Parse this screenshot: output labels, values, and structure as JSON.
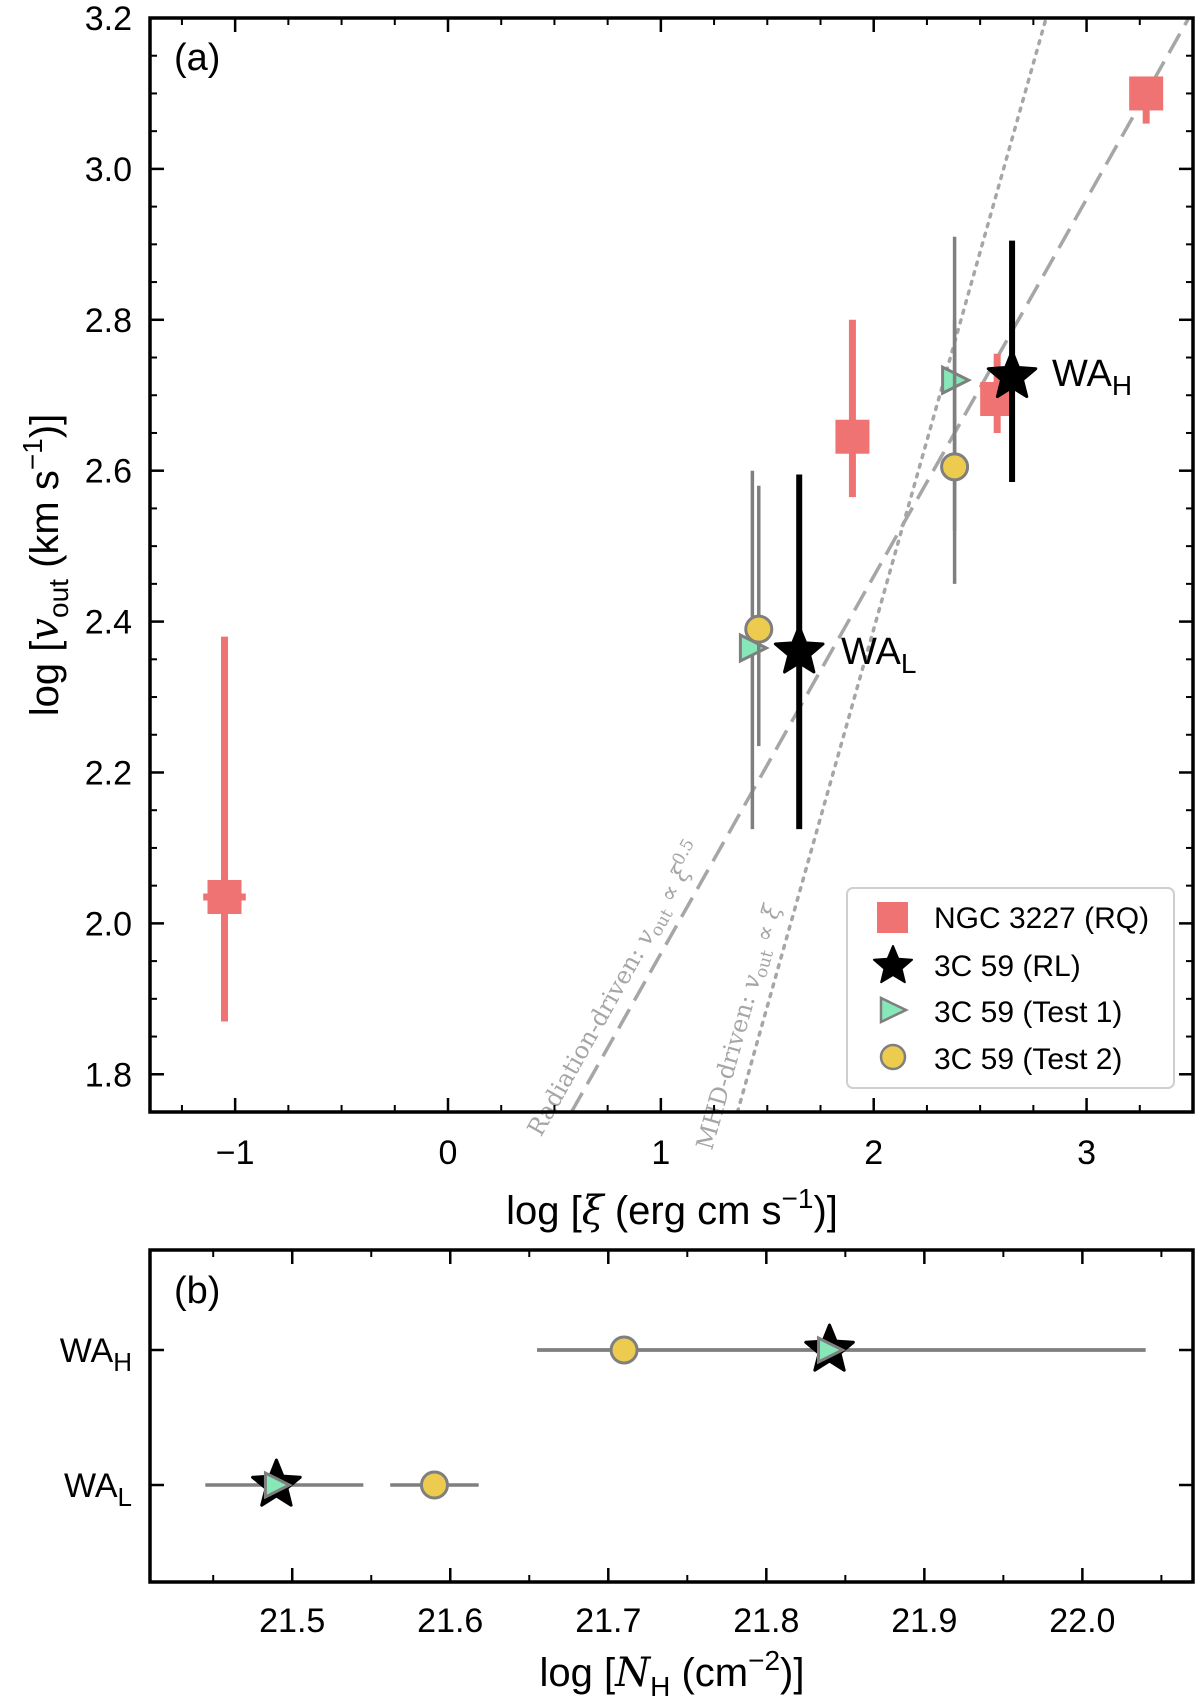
{
  "chart_data": [
    {
      "panel": "a",
      "type": "scatter",
      "panel_label": "(a)",
      "xlabel": {
        "pre": "log [",
        "sym": "ξ",
        "mid": " (erg cm s",
        "sup": "−1",
        "post": ")]"
      },
      "ylabel": {
        "pre": "log [",
        "sym": "v",
        "sub": "out",
        "mid": " (km s",
        "sup": "−1",
        "post": ")]"
      },
      "xlim": [
        -1.4,
        3.5
      ],
      "ylim": [
        1.75,
        3.2
      ],
      "xticks": [
        -1,
        0,
        1,
        2,
        3
      ],
      "xtick_labels": [
        "−1",
        "0",
        "1",
        "2",
        "3"
      ],
      "yticks": [
        1.8,
        2.0,
        2.2,
        2.4,
        2.6,
        2.8,
        3.0,
        3.2
      ],
      "ytick_labels": [
        "1.8",
        "2.0",
        "2.2",
        "2.4",
        "2.6",
        "2.8",
        "3.0",
        "3.2"
      ],
      "series": [
        {
          "name": "NGC 3227 (RQ)",
          "marker": "square",
          "color": "#f07373",
          "points": [
            {
              "x": -1.05,
              "y": 2.035,
              "y_lo": 1.87,
              "y_hi": 2.38,
              "x_lo": -1.15,
              "x_hi": -0.95
            },
            {
              "x": 1.9,
              "y": 2.645,
              "y_lo": 2.565,
              "y_hi": 2.8
            },
            {
              "x": 2.58,
              "y": 2.695,
              "y_lo": 2.65,
              "y_hi": 2.755
            },
            {
              "x": 3.28,
              "y": 3.1,
              "y_lo": 3.06,
              "y_hi": 3.1
            }
          ]
        },
        {
          "name": "3C 59 (RL)",
          "marker": "star",
          "color": "#000000",
          "points": [
            {
              "x": 1.65,
              "y": 2.36,
              "y_lo": 2.125,
              "y_hi": 2.595
            },
            {
              "x": 2.65,
              "y": 2.725,
              "y_lo": 2.585,
              "y_hi": 2.905
            }
          ]
        },
        {
          "name": "3C 59 (Test 1)",
          "marker": "triangle-right",
          "color": "#86e8b8",
          "points": [
            {
              "x": 1.43,
              "y": 2.365,
              "y_lo": 2.125,
              "y_hi": 2.6
            },
            {
              "x": 2.38,
              "y": 2.72,
              "y_lo": 2.52,
              "y_hi": 2.91
            }
          ]
        },
        {
          "name": "3C 59 (Test 2)",
          "marker": "circle",
          "color": "#eccb4f",
          "points": [
            {
              "x": 1.46,
              "y": 2.39,
              "y_lo": 2.235,
              "y_hi": 2.58
            },
            {
              "x": 2.38,
              "y": 2.605,
              "y_lo": 2.45,
              "y_hi": 2.8
            }
          ]
        }
      ],
      "point_labels": [
        {
          "text": "WA",
          "sub": "L",
          "x": 1.85,
          "y": 2.35
        },
        {
          "text": "WA",
          "sub": "H",
          "x": 2.85,
          "y": 2.72
        }
      ],
      "relations": [
        {
          "name": "radiation-driven",
          "style": "dashed",
          "slope": 0.5,
          "points": [
            [
              0.58,
              1.75
            ],
            [
              3.5,
              3.21
            ]
          ],
          "label_pre": "Radiation-driven: ",
          "label_sym": "v",
          "label_sub": "out",
          "label_rel": " ∝ ",
          "label_xi": "ξ",
          "label_exp": "0.5"
        },
        {
          "name": "mhd-driven",
          "style": "dotted",
          "slope": 1.0,
          "points": [
            [
              1.36,
              1.75
            ],
            [
              2.81,
              3.2
            ]
          ],
          "label_pre": "MHD-driven: ",
          "label_sym": "v",
          "label_sub": "out",
          "label_rel": " ∝ ",
          "label_xi": "ξ"
        }
      ],
      "legend": {
        "placement": "bottom-right",
        "entries": [
          "NGC 3227 (RQ)",
          "3C 59 (RL)",
          "3C 59 (Test 1)",
          "3C 59 (Test 2)"
        ]
      }
    },
    {
      "panel": "b",
      "type": "scatter",
      "panel_label": "(b)",
      "xlabel": {
        "pre": "log [",
        "sym": "N",
        "sub": "H",
        "mid": " (cm",
        "sup": "−2",
        "post": ")]"
      },
      "xlim": [
        21.41,
        22.07
      ],
      "xticks": [
        21.5,
        21.6,
        21.7,
        21.8,
        21.9,
        22.0
      ],
      "xtick_labels": [
        "21.5",
        "21.6",
        "21.7",
        "21.8",
        "21.9",
        "22.0"
      ],
      "categories": [
        {
          "text": "WA",
          "sub": "H"
        },
        {
          "text": "WA",
          "sub": "L"
        }
      ],
      "series": [
        {
          "name": "3C 59 (RL)",
          "marker": "star",
          "color": "#000000",
          "points": [
            {
              "category": 0,
              "x": 21.84
            },
            {
              "category": 1,
              "x": 21.49
            }
          ]
        },
        {
          "name": "3C 59 (Test 1)",
          "marker": "triangle-right",
          "color": "#86e8b8",
          "points": [
            {
              "category": 0,
              "x": 21.84,
              "x_lo": 21.655,
              "x_hi": 22.04
            },
            {
              "category": 1,
              "x": 21.49,
              "x_lo": 21.445,
              "x_hi": 21.545
            }
          ]
        },
        {
          "name": "3C 59 (Test 2)",
          "marker": "circle",
          "color": "#eccb4f",
          "points": [
            {
              "category": 0,
              "x": 21.71,
              "x_lo": 21.655,
              "x_hi": 22.04
            },
            {
              "category": 1,
              "x": 21.59,
              "x_lo": 21.562,
              "x_hi": 21.618
            }
          ]
        }
      ]
    }
  ]
}
